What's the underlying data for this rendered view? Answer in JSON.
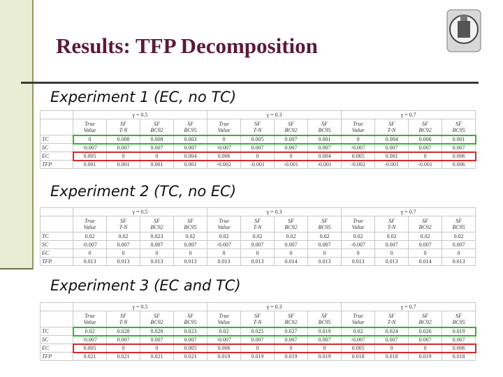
{
  "header": {
    "title": "Results: TFP Decomposition"
  },
  "experiments": [
    {
      "label": "Experiment 1 (EC, no TC)",
      "table": {
        "groups": [
          "γ = 0.5",
          "γ = 0.3",
          "γ = 0.7"
        ],
        "col_headers": [
          [
            "True",
            "Value"
          ],
          [
            "SF",
            "T-N"
          ],
          [
            "SF",
            "BC92"
          ],
          [
            "SF",
            "BC95"
          ],
          [
            "True",
            "Value"
          ],
          [
            "SF",
            "T-N"
          ],
          [
            "SF",
            "BC92"
          ],
          [
            "SF",
            "BC95"
          ],
          [
            "True",
            "Value"
          ],
          [
            "SF",
            "T-N"
          ],
          [
            "SF",
            "BC92"
          ],
          [
            "SF",
            "BC95"
          ]
        ],
        "rows": [
          {
            "label": "TC",
            "values": [
              "0",
              "0.008",
              "0.008",
              "0.003",
              "0",
              "0.005",
              "0.007",
              "0.001",
              "0",
              "0.004",
              "0.006",
              "0.001"
            ],
            "box": "#2fb52f"
          },
          {
            "label": "SC",
            "values": [
              "-0.007",
              "0.007",
              "0.007",
              "0.007",
              "-0.007",
              "0.007",
              "0.007",
              "0.007",
              "-0.007",
              "0.007",
              "0.007",
              "0.007"
            ]
          },
          {
            "label": "EC",
            "values": [
              "0.005",
              "0",
              "0",
              "0.004",
              "0.006",
              "0",
              "0",
              "0.004",
              "0.005",
              "0.001",
              "0",
              "0.006"
            ],
            "box": "#d42a2a"
          },
          {
            "label": "TFP",
            "values": [
              "0.001",
              "0.001",
              "0.001",
              "0.001",
              "-0.002",
              "-0.001",
              "-0.001",
              "-0.001",
              "-0.002",
              "-0.001",
              "-0.001",
              "0.006"
            ]
          }
        ]
      }
    },
    {
      "label": "Experiment 2 (TC, no EC)",
      "table": {
        "groups": [
          "γ = 0.5",
          "γ = 0.3",
          "γ = 0.7"
        ],
        "col_headers": [
          [
            "True",
            "Value"
          ],
          [
            "SF",
            "T-N"
          ],
          [
            "SF",
            "BC92"
          ],
          [
            "SF",
            "BC95"
          ],
          [
            "True",
            "Value"
          ],
          [
            "SF",
            "T-N"
          ],
          [
            "SF",
            "BC92"
          ],
          [
            "SF",
            "BC95"
          ],
          [
            "True",
            "Value"
          ],
          [
            "SF",
            "T-N"
          ],
          [
            "SF",
            "BC92"
          ],
          [
            "SF",
            "BC95"
          ]
        ],
        "rows": [
          {
            "label": "TC",
            "values": [
              "0.02",
              "0.02",
              "0.023",
              "0.02",
              "0.02",
              "0.02",
              "0.02",
              "0.02",
              "0.02",
              "0.02",
              "0.02",
              "0.02"
            ]
          },
          {
            "label": "SC",
            "values": [
              "-0.007",
              "0.007",
              "0.007",
              "0.007",
              "-0.007",
              "0.007",
              "0.007",
              "0.007",
              "-0.007",
              "0.007",
              "0.007",
              "0.007"
            ]
          },
          {
            "label": "EC",
            "values": [
              "0",
              "0",
              "0",
              "0",
              "0",
              "0",
              "0",
              "0",
              "0",
              "0",
              "0",
              "0"
            ]
          },
          {
            "label": "TFP",
            "values": [
              "0.013",
              "0.013",
              "0.013",
              "0.013",
              "0.013",
              "0.013",
              "0.014",
              "0.013",
              "0.013",
              "0.013",
              "0.014",
              "0.013"
            ]
          }
        ]
      }
    },
    {
      "label": "Experiment 3 (EC and TC)",
      "table": {
        "groups": [
          "γ = 0.5",
          "γ = 0.3",
          "γ = 0.7"
        ],
        "col_headers": [
          [
            "True",
            "Value"
          ],
          [
            "SF",
            "T-N"
          ],
          [
            "SF",
            "BC92"
          ],
          [
            "SF",
            "BC95"
          ],
          [
            "True",
            "Value"
          ],
          [
            "SF",
            "T-N"
          ],
          [
            "SF",
            "BC92"
          ],
          [
            "SF",
            "BC95"
          ],
          [
            "True",
            "Value"
          ],
          [
            "SF",
            "T-N"
          ],
          [
            "SF",
            "BC92"
          ],
          [
            "SF",
            "BC95"
          ]
        ],
        "rows": [
          {
            "label": "TC",
            "values": [
              "0.02",
              "0.028",
              "0.028",
              "0.023",
              "0.02",
              "0.025",
              "0.027",
              "0.019",
              "0.02",
              "0.024",
              "0.026",
              "0.019"
            ],
            "box": "#2fb52f"
          },
          {
            "label": "SC",
            "values": [
              "-0.007",
              "0.007",
              "0.007",
              "0.007",
              "-0.007",
              "0.007",
              "0.007",
              "0.007",
              "-0.007",
              "0.007",
              "0.007",
              "0.007"
            ]
          },
          {
            "label": "EC",
            "values": [
              "0.005",
              "0",
              "0",
              "0.005",
              "0.006",
              "0",
              "0",
              "0",
              "0.005",
              "0",
              "0",
              "0.006"
            ],
            "box": "#d42a2a"
          },
          {
            "label": "TFP",
            "values": [
              "0.021",
              "0.021",
              "0.021",
              "0.021",
              "0.019",
              "0.019",
              "0.019",
              "0.019",
              "0.018",
              "0.018",
              "0.019",
              "0.018"
            ]
          }
        ]
      }
    }
  ]
}
